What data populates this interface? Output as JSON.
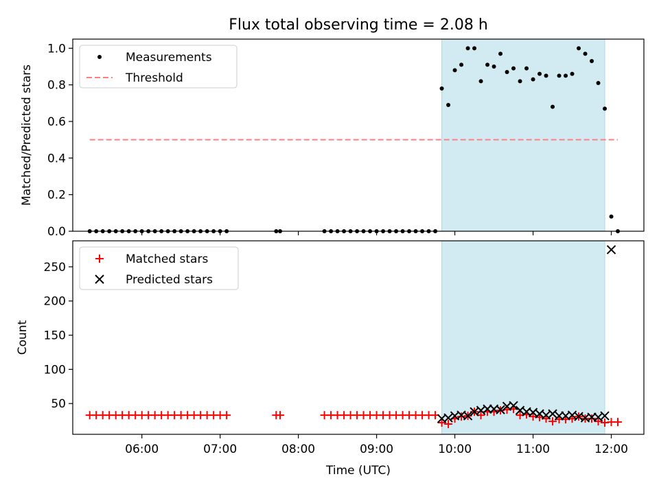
{
  "chart_data": {
    "title": "Flux total observing time = 2.08 h",
    "shaded_region": {
      "start": "09:50",
      "end": "11:55",
      "color": "#add8e6"
    },
    "x_axis": {
      "label": "Time (UTC)",
      "ticks": [
        "06:00",
        "07:00",
        "08:00",
        "09:00",
        "10:00",
        "11:00",
        "12:00"
      ],
      "range": [
        "05:07",
        "12:25"
      ]
    },
    "panels": [
      {
        "type": "scatter",
        "ylabel": "Matched/Predicted stars",
        "ylim": [
          0,
          1.05
        ],
        "yticks": [
          "0.0",
          "0.2",
          "0.4",
          "0.6",
          "0.8",
          "1.0"
        ],
        "legend": {
          "placement": "top-left",
          "entries": [
            "Measurements",
            "Threshold"
          ]
        },
        "series": [
          {
            "name": "Measurements",
            "kind": "dots",
            "color": "#000000",
            "points": [
              [
                "05:20",
                0
              ],
              [
                "05:25",
                0
              ],
              [
                "05:30",
                0
              ],
              [
                "05:35",
                0
              ],
              [
                "05:40",
                0
              ],
              [
                "05:45",
                0
              ],
              [
                "05:50",
                0
              ],
              [
                "05:55",
                0
              ],
              [
                "06:00",
                0
              ],
              [
                "06:05",
                0
              ],
              [
                "06:10",
                0
              ],
              [
                "06:15",
                0
              ],
              [
                "06:20",
                0
              ],
              [
                "06:25",
                0
              ],
              [
                "06:30",
                0
              ],
              [
                "06:35",
                0
              ],
              [
                "06:40",
                0
              ],
              [
                "06:45",
                0
              ],
              [
                "06:50",
                0
              ],
              [
                "06:55",
                0
              ],
              [
                "07:00",
                0
              ],
              [
                "07:05",
                0
              ],
              [
                "07:43",
                0
              ],
              [
                "07:46",
                0
              ],
              [
                "08:20",
                0
              ],
              [
                "08:25",
                0
              ],
              [
                "08:30",
                0
              ],
              [
                "08:35",
                0
              ],
              [
                "08:40",
                0
              ],
              [
                "08:45",
                0
              ],
              [
                "08:50",
                0
              ],
              [
                "08:55",
                0
              ],
              [
                "09:00",
                0
              ],
              [
                "09:05",
                0
              ],
              [
                "09:10",
                0
              ],
              [
                "09:15",
                0
              ],
              [
                "09:20",
                0
              ],
              [
                "09:25",
                0
              ],
              [
                "09:30",
                0
              ],
              [
                "09:35",
                0
              ],
              [
                "09:40",
                0
              ],
              [
                "09:45",
                0
              ],
              [
                "09:50",
                0.78
              ],
              [
                "09:55",
                0.69
              ],
              [
                "10:00",
                0.88
              ],
              [
                "10:05",
                0.91
              ],
              [
                "10:10",
                1.0
              ],
              [
                "10:15",
                1.0
              ],
              [
                "10:20",
                0.82
              ],
              [
                "10:25",
                0.91
              ],
              [
                "10:30",
                0.9
              ],
              [
                "10:35",
                0.97
              ],
              [
                "10:40",
                0.87
              ],
              [
                "10:45",
                0.89
              ],
              [
                "10:50",
                0.82
              ],
              [
                "10:55",
                0.89
              ],
              [
                "11:00",
                0.83
              ],
              [
                "11:05",
                0.86
              ],
              [
                "11:10",
                0.85
              ],
              [
                "11:15",
                0.68
              ],
              [
                "11:20",
                0.85
              ],
              [
                "11:25",
                0.85
              ],
              [
                "11:30",
                0.86
              ],
              [
                "11:35",
                1.0
              ],
              [
                "11:40",
                0.97
              ],
              [
                "11:45",
                0.93
              ],
              [
                "11:50",
                0.81
              ],
              [
                "11:55",
                0.67
              ],
              [
                "12:00",
                0.08
              ],
              [
                "12:05",
                0.0
              ]
            ]
          },
          {
            "name": "Threshold",
            "kind": "dashed-line",
            "color": "#ff7f7f",
            "points": [
              [
                "05:20",
                0.5
              ],
              [
                "12:05",
                0.5
              ]
            ]
          }
        ]
      },
      {
        "type": "scatter",
        "ylabel": "Count",
        "ylim": [
          5,
          288
        ],
        "yticks": [
          "50",
          "100",
          "150",
          "200",
          "250"
        ],
        "legend": {
          "placement": "top-left",
          "entries": [
            "Matched stars",
            "Predicted stars"
          ]
        },
        "series": [
          {
            "name": "Matched stars",
            "kind": "plus",
            "color": "#ff0000",
            "points": [
              [
                "05:20",
                33
              ],
              [
                "05:25",
                33
              ],
              [
                "05:30",
                33
              ],
              [
                "05:35",
                33
              ],
              [
                "05:40",
                33
              ],
              [
                "05:45",
                33
              ],
              [
                "05:50",
                33
              ],
              [
                "05:55",
                33
              ],
              [
                "06:00",
                33
              ],
              [
                "06:05",
                33
              ],
              [
                "06:10",
                33
              ],
              [
                "06:15",
                33
              ],
              [
                "06:20",
                33
              ],
              [
                "06:25",
                33
              ],
              [
                "06:30",
                33
              ],
              [
                "06:35",
                33
              ],
              [
                "06:40",
                33
              ],
              [
                "06:45",
                33
              ],
              [
                "06:50",
                33
              ],
              [
                "06:55",
                33
              ],
              [
                "07:00",
                33
              ],
              [
                "07:05",
                33
              ],
              [
                "07:43",
                33
              ],
              [
                "07:46",
                33
              ],
              [
                "08:20",
                33
              ],
              [
                "08:25",
                33
              ],
              [
                "08:30",
                33
              ],
              [
                "08:35",
                33
              ],
              [
                "08:40",
                33
              ],
              [
                "08:45",
                33
              ],
              [
                "08:50",
                33
              ],
              [
                "08:55",
                33
              ],
              [
                "09:00",
                33
              ],
              [
                "09:05",
                33
              ],
              [
                "09:10",
                33
              ],
              [
                "09:15",
                33
              ],
              [
                "09:20",
                33
              ],
              [
                "09:25",
                33
              ],
              [
                "09:30",
                33
              ],
              [
                "09:35",
                33
              ],
              [
                "09:40",
                33
              ],
              [
                "09:45",
                33
              ],
              [
                "09:50",
                22
              ],
              [
                "09:55",
                20
              ],
              [
                "10:00",
                28
              ],
              [
                "10:05",
                31
              ],
              [
                "10:10",
                32
              ],
              [
                "10:15",
                38
              ],
              [
                "10:20",
                33
              ],
              [
                "10:25",
                38
              ],
              [
                "10:30",
                38
              ],
              [
                "10:35",
                40
              ],
              [
                "10:40",
                41
              ],
              [
                "10:45",
                42
              ],
              [
                "10:50",
                33
              ],
              [
                "10:55",
                34
              ],
              [
                "11:00",
                31
              ],
              [
                "11:05",
                30
              ],
              [
                "11:10",
                28
              ],
              [
                "11:15",
                24
              ],
              [
                "11:20",
                27
              ],
              [
                "11:25",
                27
              ],
              [
                "11:30",
                28
              ],
              [
                "11:35",
                31
              ],
              [
                "11:40",
                28
              ],
              [
                "11:45",
                28
              ],
              [
                "11:50",
                24
              ],
              [
                "11:55",
                22
              ],
              [
                "12:00",
                23
              ],
              [
                "12:05",
                23
              ]
            ]
          },
          {
            "name": "Predicted stars",
            "kind": "x",
            "color": "#000000",
            "points": [
              [
                "09:50",
                28
              ],
              [
                "09:55",
                29
              ],
              [
                "10:00",
                32
              ],
              [
                "10:05",
                33
              ],
              [
                "10:10",
                32
              ],
              [
                "10:15",
                38
              ],
              [
                "10:20",
                40
              ],
              [
                "10:25",
                42
              ],
              [
                "10:30",
                42
              ],
              [
                "10:35",
                41
              ],
              [
                "10:40",
                46
              ],
              [
                "10:45",
                47
              ],
              [
                "10:50",
                40
              ],
              [
                "10:55",
                38
              ],
              [
                "11:00",
                37
              ],
              [
                "11:05",
                35
              ],
              [
                "11:10",
                33
              ],
              [
                "11:15",
                35
              ],
              [
                "11:20",
                32
              ],
              [
                "11:25",
                32
              ],
              [
                "11:30",
                33
              ],
              [
                "11:35",
                31
              ],
              [
                "11:40",
                29
              ],
              [
                "11:45",
                30
              ],
              [
                "11:50",
                30
              ],
              [
                "11:55",
                32
              ],
              [
                "12:00",
                275
              ]
            ]
          }
        ]
      }
    ]
  }
}
